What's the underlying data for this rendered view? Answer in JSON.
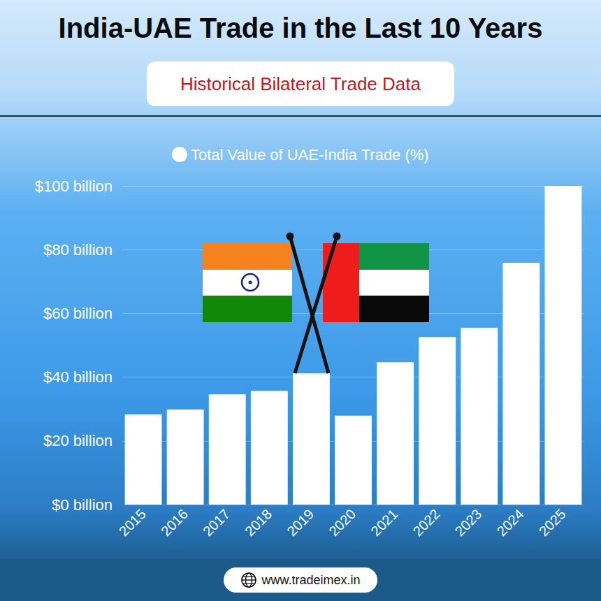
{
  "chart_data": {
    "type": "bar",
    "title": "India-UAE Trade in the Last 10 Years",
    "subtitle": "Historical Bilateral Trade Data",
    "footer": "www.tradeimex.in",
    "categories": [
      "2015",
      "2016",
      "2017",
      "2018",
      "2019",
      "2020",
      "2021",
      "2022",
      "2023",
      "2024",
      "2025"
    ],
    "series": [
      {
        "name": "Total Value of UAE-India Trade (%)",
        "color": "#ffffff",
        "values": [
          28.3,
          29.8,
          34.6,
          35.7,
          41.2,
          27.9,
          44.7,
          52.6,
          55.5,
          75.9,
          100
        ]
      }
    ],
    "ylim": [
      0,
      100
    ],
    "yticks": [
      {
        "value": 0,
        "label": "$0 billion"
      },
      {
        "value": 20,
        "label": "$20 billion"
      },
      {
        "value": 40,
        "label": "$40 billion"
      },
      {
        "value": 60,
        "label": "$60 billion"
      },
      {
        "value": 80,
        "label": "$80 billion"
      },
      {
        "value": 100,
        "label": "$100 billion"
      }
    ],
    "grid": true,
    "legend": "top"
  }
}
